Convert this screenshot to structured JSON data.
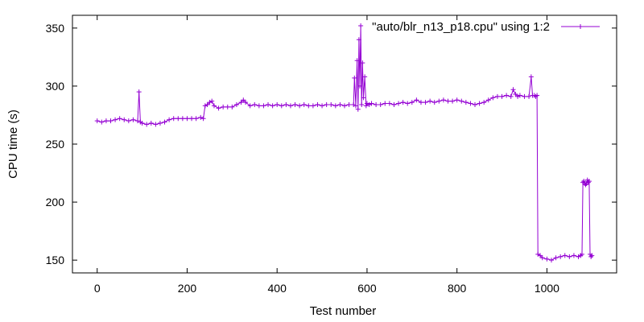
{
  "chart_data": {
    "type": "line",
    "title": "",
    "xlabel": "Test number",
    "ylabel": "CPU time (s)",
    "xlim": [
      -55,
      1155
    ],
    "ylim": [
      139,
      361
    ],
    "xticks": [
      0,
      200,
      400,
      600,
      800,
      1000
    ],
    "yticks": [
      150,
      200,
      250,
      300,
      350
    ],
    "grid": false,
    "legend_position": "top-right",
    "series": [
      {
        "name": "\"auto/blr_n13_p18.cpu\" using 1:2",
        "color": "#9400d3",
        "marker": "plus",
        "x": [
          0,
          10,
          20,
          30,
          40,
          50,
          60,
          70,
          80,
          90,
          93,
          96,
          100,
          110,
          120,
          130,
          140,
          150,
          160,
          170,
          180,
          190,
          200,
          210,
          220,
          230,
          236,
          240,
          245,
          250,
          255,
          260,
          270,
          280,
          290,
          300,
          310,
          320,
          325,
          330,
          340,
          350,
          360,
          370,
          380,
          390,
          400,
          410,
          420,
          430,
          440,
          450,
          460,
          470,
          480,
          490,
          500,
          510,
          520,
          530,
          540,
          550,
          560,
          570,
          572,
          575,
          578,
          580,
          582,
          584,
          586,
          588,
          590,
          592,
          595,
          598,
          600,
          605,
          610,
          620,
          630,
          640,
          650,
          660,
          670,
          680,
          690,
          700,
          710,
          720,
          730,
          740,
          750,
          760,
          770,
          780,
          790,
          800,
          810,
          820,
          830,
          840,
          850,
          860,
          870,
          880,
          890,
          900,
          910,
          920,
          925,
          930,
          935,
          940,
          950,
          960,
          965,
          968,
          972,
          975,
          978,
          980,
          985,
          990,
          1000,
          1010,
          1020,
          1030,
          1040,
          1050,
          1060,
          1070,
          1075,
          1078,
          1080,
          1082,
          1084,
          1086,
          1088,
          1090,
          1092,
          1094,
          1096,
          1098,
          1100
        ],
        "y": [
          270,
          269,
          270,
          270,
          271,
          272,
          271,
          270,
          271,
          270,
          295,
          269,
          268,
          267,
          268,
          267,
          268,
          269,
          271,
          272,
          272,
          272,
          272,
          272,
          272,
          273,
          272,
          283,
          284,
          286,
          287,
          283,
          281,
          282,
          282,
          282,
          284,
          286,
          288,
          286,
          283,
          284,
          283,
          283,
          284,
          283,
          284,
          283,
          284,
          283,
          284,
          283,
          284,
          283,
          283,
          284,
          283,
          284,
          284,
          283,
          284,
          283,
          284,
          284,
          307,
          283,
          322,
          280,
          340,
          300,
          352,
          284,
          320,
          290,
          308,
          283,
          285,
          284,
          285,
          284,
          284,
          285,
          285,
          284,
          285,
          286,
          285,
          286,
          288,
          286,
          286,
          287,
          286,
          287,
          288,
          287,
          287,
          288,
          287,
          286,
          285,
          284,
          285,
          286,
          288,
          290,
          291,
          291,
          292,
          291,
          297,
          293,
          291,
          292,
          291,
          291,
          308,
          292,
          292,
          291,
          292,
          155,
          154,
          152,
          151,
          150,
          152,
          153,
          154,
          153,
          154,
          153,
          154,
          155,
          217,
          218,
          216,
          215,
          216,
          219,
          217,
          218,
          155,
          153,
          154
        ]
      }
    ]
  }
}
